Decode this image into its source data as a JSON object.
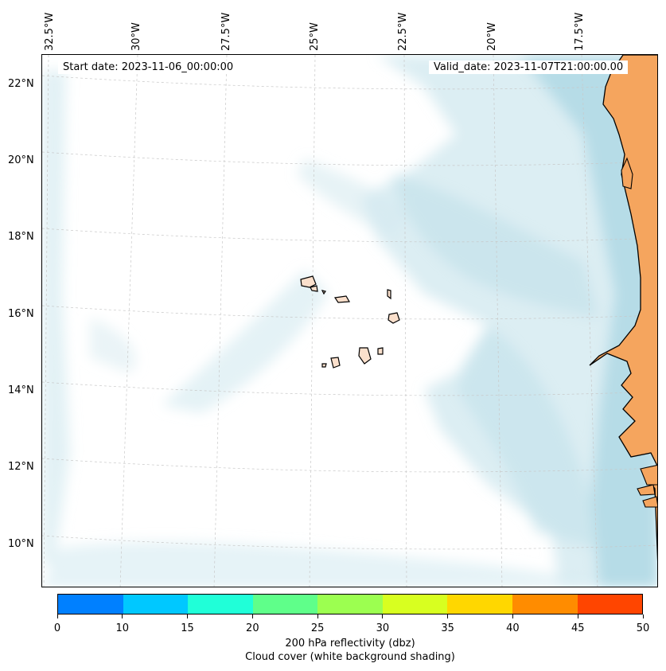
{
  "map": {
    "lon_labels": [
      "32.5°W",
      "30°W",
      "27.5°W",
      "25°W",
      "22.5°W",
      "20°W",
      "17.5°W"
    ],
    "lat_labels": [
      "22°N",
      "20°N",
      "18°N",
      "16°N",
      "14°N",
      "12°N",
      "10°N"
    ],
    "start_date": "Start date: 2023-11-06_00:00:00",
    "valid_date": "Valid_date: 2023-11-07T21:00:00.00"
  },
  "colorbar": {
    "ticks": [
      "0",
      "10",
      "15",
      "20",
      "25",
      "30",
      "35",
      "40",
      "45",
      "50"
    ],
    "colors": [
      "#0080ff",
      "#00c8ff",
      "#20ffd8",
      "#5fff8a",
      "#9cff50",
      "#d8ff20",
      "#ffd700",
      "#ff8c00",
      "#ff4500"
    ],
    "label_line1": "200 hPa reflectivity (dbz)",
    "label_line2": "Cloud cover (white background shading)"
  },
  "colors": {
    "land": "#f5a55e",
    "cloud": "#bfe0ea",
    "island_fill": "#fbe0cc"
  }
}
